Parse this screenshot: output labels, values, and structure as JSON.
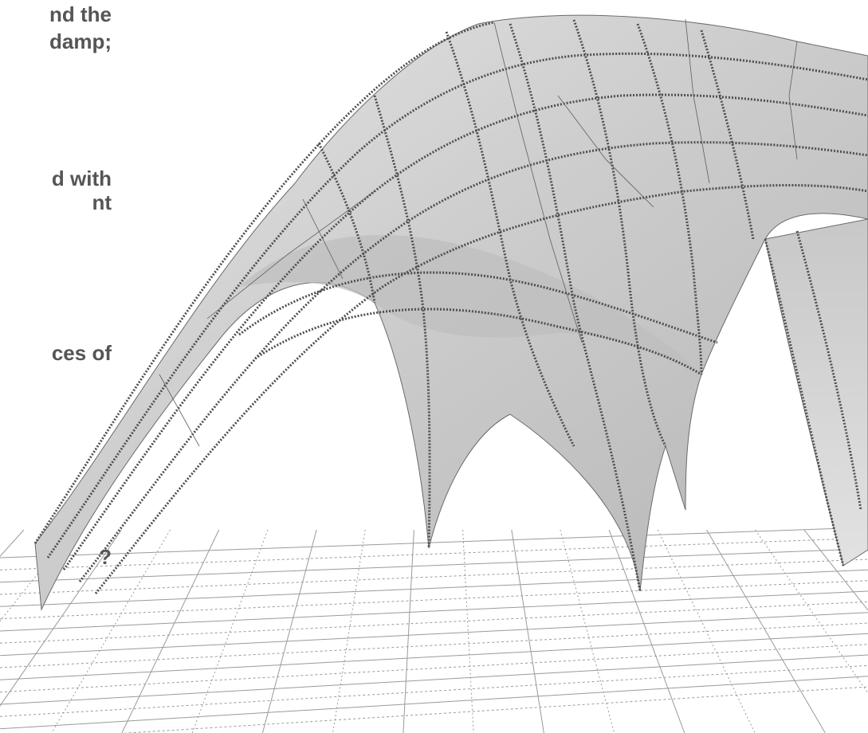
{
  "text_fragments": [
    "nd the",
    "damp;",
    "d with",
    "nt",
    "ces of",
    "?"
  ],
  "colors": {
    "background": "#ffffff",
    "text": "#555555",
    "surface_fill": "#cfcfcf",
    "surface_shade": "#b9b9b9",
    "mesh_dots": "#555555",
    "floor_grid": "#a0a0a0"
  },
  "surface": {
    "description_type": "3d-shell-mesh",
    "supports": 4
  }
}
